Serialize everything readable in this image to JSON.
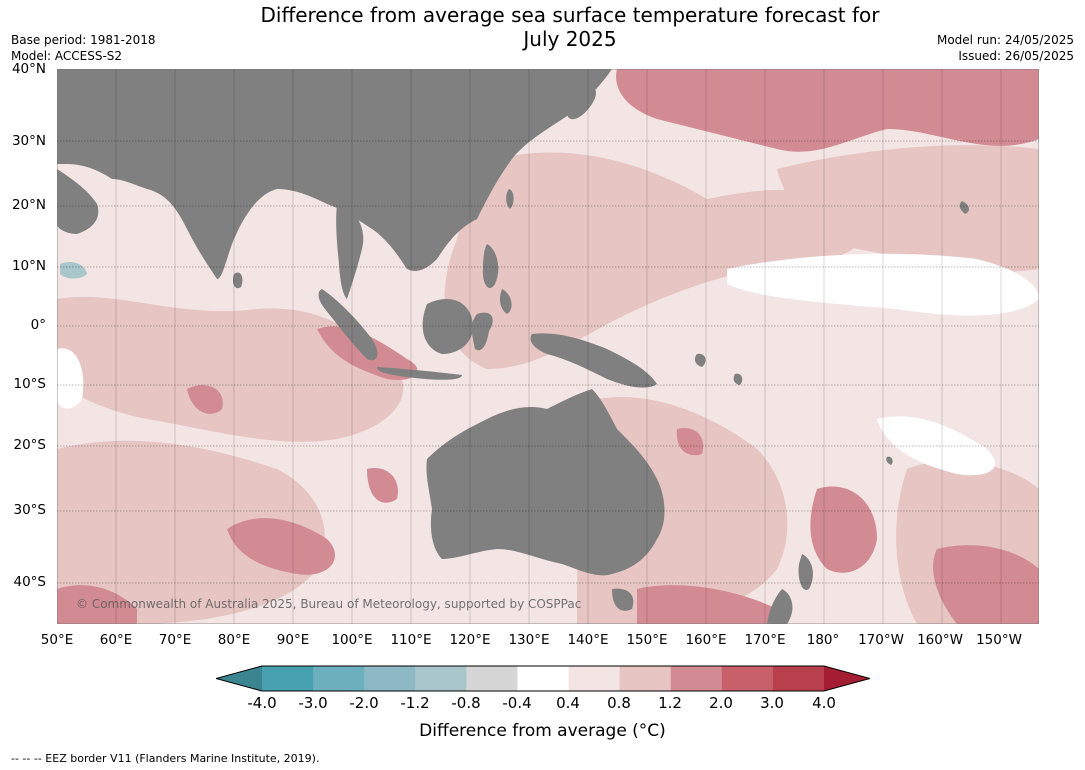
{
  "title": {
    "line1": "Difference from average sea surface temperature forecast for",
    "line2": "July 2025"
  },
  "meta_left": {
    "base_period": "Base period: 1981-2018",
    "model": "Model: ACCESS-S2"
  },
  "meta_right": {
    "model_run": "Model run: 24/05/2025",
    "issued": "Issued: 26/05/2025"
  },
  "map": {
    "lat_labels": [
      "40°N",
      "30°N",
      "20°N",
      "10°N",
      "0°",
      "10°S",
      "20°S",
      "30°S",
      "40°S"
    ],
    "lon_labels": [
      "50°E",
      "60°E",
      "70°E",
      "80°E",
      "90°E",
      "100°E",
      "110°E",
      "120°E",
      "130°E",
      "140°E",
      "150°E",
      "160°E",
      "170°E",
      "180°",
      "170°W",
      "160°W",
      "150°W"
    ],
    "land_color": "#808080",
    "gridlines": true,
    "copyright": "© Commonwealth of Australia 2025, Bureau of Meteorology, supported by COSPPac"
  },
  "colorbar": {
    "ticks": [
      "-4.0",
      "-3.0",
      "-2.0",
      "-1.2",
      "-0.8",
      "-0.4",
      "0.4",
      "0.8",
      "1.2",
      "2.0",
      "3.0",
      "4.0"
    ],
    "colors": [
      "#48a1b1",
      "#6cafbd",
      "#8db9c4",
      "#a9c6ca",
      "#d6d6d6",
      "#ffffff",
      "#f3e5e4",
      "#e6c5c2",
      "#d38b93",
      "#c8606c",
      "#bb404e"
    ],
    "under_color": "#3b8591",
    "over_color": "#a51d32",
    "label": "Difference from average (°C)"
  },
  "footer": "--  --  -- EEZ border V11 (Flanders Marine Institute, 2019)."
}
